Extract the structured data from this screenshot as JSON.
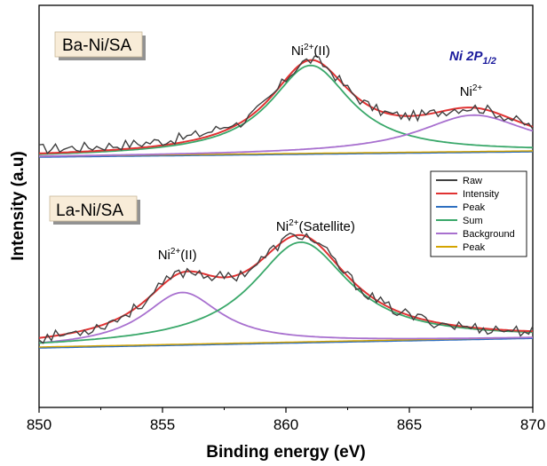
{
  "chart_data": {
    "type": "line",
    "title_main": "Ni 2P",
    "title_sub": "1/2",
    "xlabel": "Binding energy (eV)",
    "ylabel": "Intensity (a.u)",
    "xlim": [
      850,
      870
    ],
    "x_ticks": [
      850,
      855,
      860,
      865,
      870
    ],
    "legend": [
      {
        "label": "Raw",
        "color": "#404040"
      },
      {
        "label": "Intensity",
        "color": "#e03232"
      },
      {
        "label": "Peak",
        "color": "#2e6fc0"
      },
      {
        "label": "Sum",
        "color": "#3aa86a"
      },
      {
        "label": "Background",
        "color": "#a870cf"
      },
      {
        "label": "Peak",
        "color": "#d4a400"
      }
    ],
    "panels": [
      {
        "tag": "Ba-Ni/SA",
        "annotations": [
          {
            "base": "Ni",
            "sup": "2+",
            "suffix": "(II)",
            "x": 861.0
          },
          {
            "base": "Ni",
            "sup": "2+",
            "suffix": "",
            "x": 867.5
          }
        ],
        "baseline": {
          "start": 0.0,
          "end": 0.06
        },
        "peaks": [
          {
            "center": 861.0,
            "height": 1.0,
            "width": 2.0
          },
          {
            "center": 867.6,
            "height": 0.42,
            "width": 2.7
          }
        ]
      },
      {
        "tag": "La-Ni/SA",
        "annotations": [
          {
            "base": "Ni",
            "sup": "2+",
            "suffix": "(II)",
            "x": 855.6
          },
          {
            "base": "Ni",
            "sup": "2+",
            "suffix": "(Satellite)",
            "x": 861.2
          }
        ],
        "baseline": {
          "start": 0.0,
          "end": 0.1
        },
        "peaks": [
          {
            "center": 855.8,
            "height": 0.55,
            "width": 1.9
          },
          {
            "center": 860.6,
            "height": 1.05,
            "width": 2.4
          }
        ]
      }
    ]
  }
}
